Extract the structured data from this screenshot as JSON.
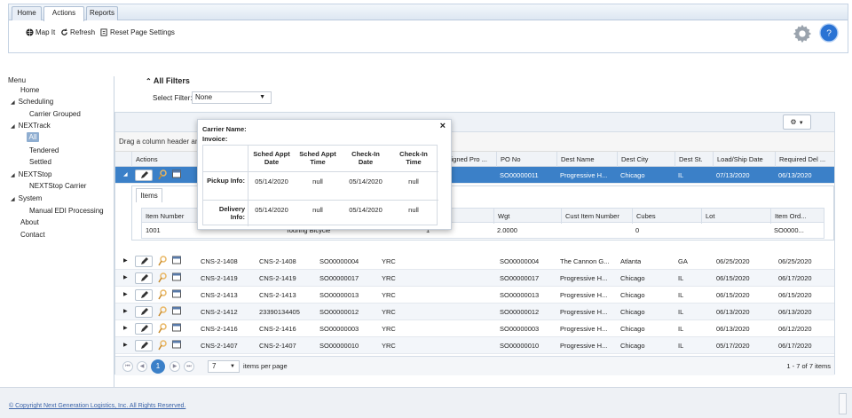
{
  "ribbon": {
    "tabs": [
      "Home",
      "Actions",
      "Reports"
    ],
    "buttons": {
      "map_it": "Map It",
      "refresh": "Refresh",
      "reset": "Reset Page Settings"
    }
  },
  "menu": {
    "title": "Menu",
    "items": [
      "Home",
      "Scheduling",
      "Carrier Grouped",
      "NEXTrack",
      "All",
      "Tendered",
      "Settled",
      "NEXTStop",
      "NEXTStop Carrier",
      "System",
      "Manual EDI Processing",
      "About",
      "Contact"
    ]
  },
  "filters": {
    "title": "All Filters",
    "select_label": "Select Filter:",
    "select_value": "None"
  },
  "grid": {
    "group_hint": "Drag a column header and",
    "columns": [
      "Actions",
      "Assigned Pro ...",
      "PO No",
      "Dest Name",
      "Dest City",
      "Dest St.",
      "Load/Ship Date",
      "Required Del ..."
    ],
    "selected_row": {
      "po": "SO00000011",
      "dest_name": "Progressive H...",
      "dest_city": "Chicago",
      "dest_st": "IL",
      "ship": "07/13/2020",
      "req": "06/13/2020"
    },
    "detail": {
      "tab": "Items",
      "headers": [
        "Item Number",
        "Wgt",
        "Cust Item Number",
        "Cubes",
        "Lot",
        "Item Ord..."
      ],
      "row": {
        "item_number": "1001",
        "desc": "Touring Bicycle",
        "qty": "1",
        "wgt": "2.0000",
        "cubes": "0",
        "ord": "SO0000..."
      }
    },
    "rows": [
      {
        "c1": "CNS-2-1408",
        "c2": "CNS-2-1408",
        "c3": "SO00000004",
        "c4": "YRC",
        "po": "SO00000004",
        "name": "The Cannon G...",
        "city": "Atlanta",
        "st": "GA",
        "ship": "06/25/2020",
        "req": "06/25/2020"
      },
      {
        "c1": "CNS-2-1419",
        "c2": "CNS-2-1419",
        "c3": "SO00000017",
        "c4": "YRC",
        "po": "SO00000017",
        "name": "Progressive H...",
        "city": "Chicago",
        "st": "IL",
        "ship": "06/15/2020",
        "req": "06/17/2020"
      },
      {
        "c1": "CNS-2-1413",
        "c2": "CNS-2-1413",
        "c3": "SO00000013",
        "c4": "YRC",
        "po": "SO00000013",
        "name": "Progressive H...",
        "city": "Chicago",
        "st": "IL",
        "ship": "06/15/2020",
        "req": "06/15/2020"
      },
      {
        "c1": "CNS-2-1412",
        "c2": "23390134405",
        "c3": "SO00000012",
        "c4": "YRC",
        "po": "SO00000012",
        "name": "Progressive H...",
        "city": "Chicago",
        "st": "IL",
        "ship": "06/13/2020",
        "req": "06/13/2020"
      },
      {
        "c1": "CNS-2-1416",
        "c2": "CNS-2-1416",
        "c3": "SO00000003",
        "c4": "YRC",
        "po": "SO00000003",
        "name": "Progressive H...",
        "city": "Chicago",
        "st": "IL",
        "ship": "06/13/2020",
        "req": "06/12/2020"
      },
      {
        "c1": "CNS-2-1407",
        "c2": "CNS-2-1407",
        "c3": "SO00000010",
        "c4": "YRC",
        "po": "SO00000010",
        "name": "Progressive H...",
        "city": "Chicago",
        "st": "IL",
        "ship": "05/17/2020",
        "req": "06/17/2020"
      }
    ],
    "pager": {
      "current": "1",
      "size": "7",
      "per_page": "items per page",
      "summary": "1 - 7 of 7 items"
    }
  },
  "popup": {
    "carrier": "Carrier Name:",
    "invoice": "Invoice:",
    "headers": [
      "Sched Appt Date",
      "Sched Appt Time",
      "Check-In Date",
      "Check-In Time"
    ],
    "pickup": {
      "label": "Pickup Info:",
      "values": [
        "05/14/2020",
        "null",
        "05/14/2020",
        "null"
      ]
    },
    "delivery": {
      "label": "Delivery Info:",
      "values": [
        "05/14/2020",
        "null",
        "05/14/2020",
        "null"
      ]
    },
    "close": "×"
  },
  "footer": {
    "copyright": "© Copyright Next Generation Logistics, Inc. All Rights Reserved."
  },
  "colors": {
    "accent": "#3b80c8",
    "link": "#3a63a8"
  }
}
